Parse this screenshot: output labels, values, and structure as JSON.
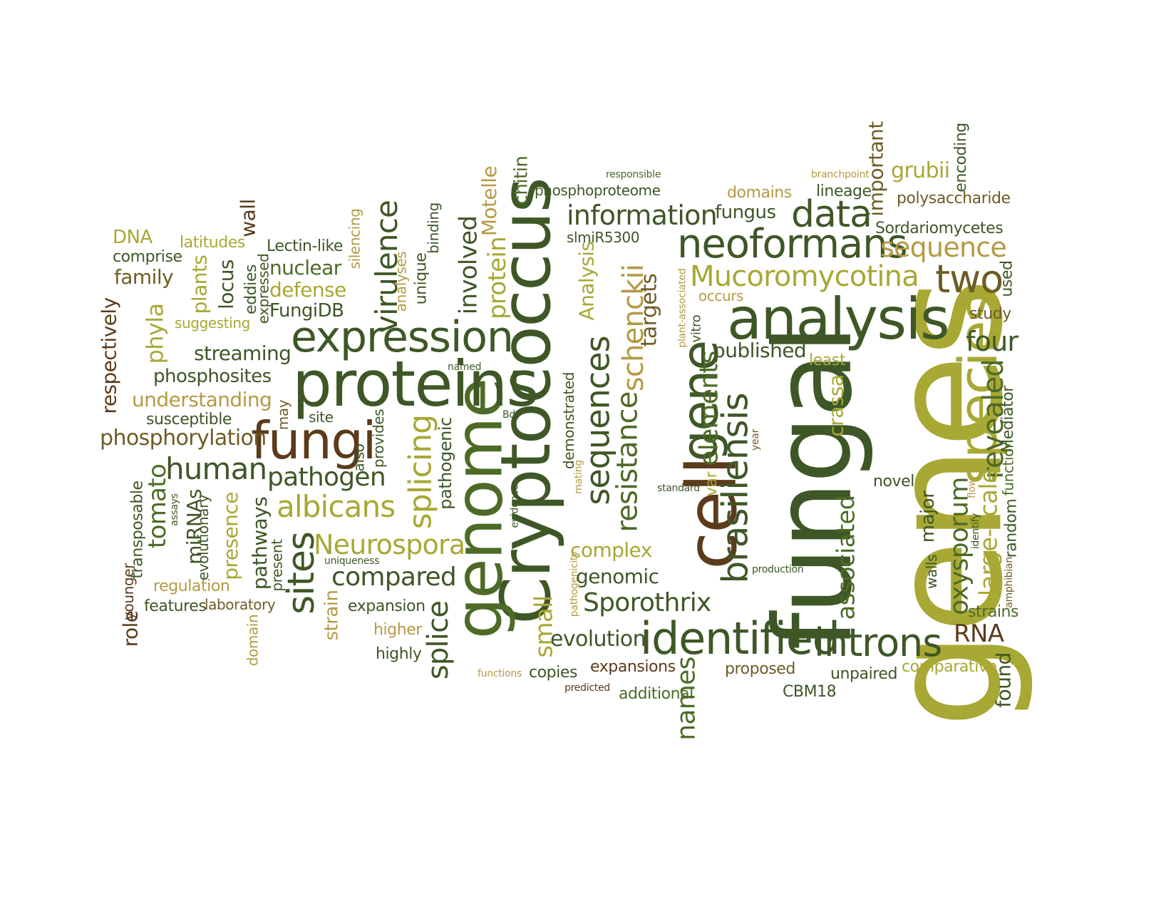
{
  "palette": {
    "dark_green": "#3e5726",
    "mid_green": "#4d6b26",
    "olive_yellow": "#a8a834",
    "khaki": "#b59a44",
    "brown": "#5b3b1b",
    "olive_brown": "#6e5c24"
  },
  "words": [
    "genes",
    "fungal",
    "Cryptococcus",
    "genome",
    "cell",
    "gene",
    "proteins",
    "analysis",
    "expression",
    "species",
    "fungi",
    "neoformans",
    "data",
    "Mucoromycotina",
    "identified",
    "introns",
    "two",
    "brasiliensis",
    "information",
    "sequences",
    "resistance",
    "schenckii",
    "splicing",
    "virulence",
    "sites",
    "sequence",
    "human",
    "albicans",
    "revealed",
    "Neurospora",
    "four",
    "compared",
    "elements",
    "pathogen",
    "Sporothrix",
    "phosphorylation",
    "oxysporum",
    "splice",
    "large-scale",
    "names",
    "published",
    "RNA",
    "associated",
    "evolution",
    "Analysis",
    "protein",
    "involved",
    "streaming",
    "phosphosites",
    "understanding",
    "respectively",
    "tomato",
    "phyla",
    "chitin",
    "Motelle",
    "complex",
    "genomic",
    "small",
    "targets",
    "fungus",
    "domains",
    "lineage",
    "important",
    "grubii",
    "encoding",
    "polysaccharide",
    "Sordariomycetes",
    "study",
    "used",
    "crassa",
    "least",
    "Mediator",
    "function",
    "random",
    "strains",
    "walls",
    "major",
    "novel",
    "comparative",
    "proposed",
    "unpaired",
    "found",
    "CBM18",
    "additional",
    "expansions",
    "copies",
    "expansion",
    "higher",
    "highly",
    "strain",
    "presence",
    "pathways",
    "miRNAs",
    "evolutionary",
    "transposable",
    "younger",
    "role",
    "regulation",
    "features",
    "laboratory",
    "domain",
    "present",
    "family",
    "comprise",
    "DNA",
    "latitudes",
    "Lectin-like",
    "nuclear",
    "defense",
    "FungiDB",
    "eddies",
    "expressed",
    "wall",
    "locus",
    "plants",
    "suggesting",
    "silencing",
    "analyses",
    "unique",
    "binding",
    "susceptible",
    "may",
    "site",
    "also",
    "provides",
    "pathogenic",
    "demonstrated",
    "phosphoproteome",
    "slmiR5300",
    "responsible",
    "branchpoint",
    "occurs",
    "vitro",
    "plant-associated",
    "var",
    "year",
    "standard",
    "mating",
    "evidence",
    "pathogenicity",
    "Bd",
    "named",
    "uniqueness",
    "production",
    "identify",
    "amphibian",
    "flow",
    "assays",
    "functions",
    "predicted"
  ]
}
